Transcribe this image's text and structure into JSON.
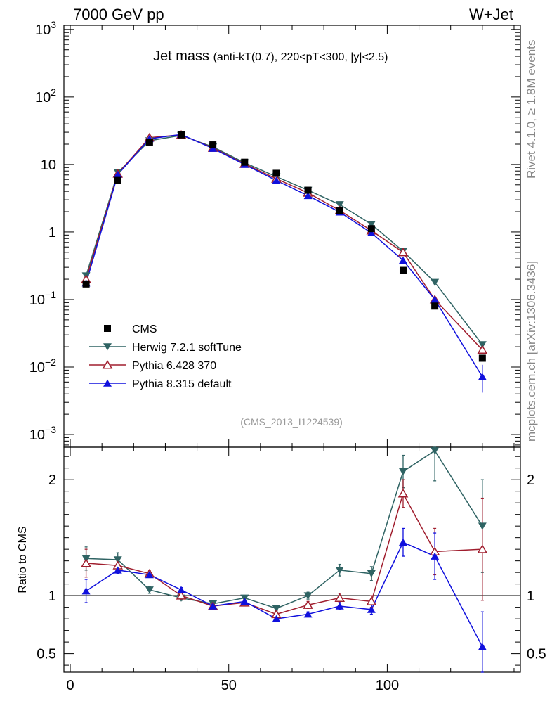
{
  "header": {
    "energy_label": "7000 GeV pp",
    "process_label": "W+Jet"
  },
  "side_labels": {
    "rivet": "Rivet 4.1.0, ≥ 1.8M events",
    "mcplots": "mcplots.cern.ch [arXiv:1306.3436]"
  },
  "chart_data": {
    "type": "line",
    "title": "Jet mass",
    "subtitle": "(anti-kT(0.7), 220<pT<300, |y|<2.5)",
    "analysis_id": "(CMS_2013_I1224539)",
    "xlabel": "",
    "ylabel": "",
    "xlim": [
      -2,
      142
    ],
    "ylim": [
      0.00065,
      1150
    ],
    "yscale": "log",
    "legend_position": "lower-left",
    "x": [
      5,
      15,
      25,
      35,
      45,
      55,
      65,
      75,
      85,
      95,
      105,
      115,
      130
    ],
    "xticks": [
      0,
      50,
      100
    ],
    "yticks": [
      {
        "base": "10",
        "exp": "−3"
      },
      {
        "base": "10",
        "exp": "−2"
      },
      {
        "base": "10",
        "exp": "−1"
      },
      {
        "base": "1",
        "exp": ""
      },
      {
        "base": "10",
        "exp": ""
      },
      {
        "base": "10",
        "exp": "2"
      },
      {
        "base": "10",
        "exp": "3"
      }
    ],
    "data": {
      "name": "CMS",
      "color": "#000000",
      "marker": "square",
      "values": [
        0.17,
        5.8,
        21.5,
        27.5,
        19.5,
        10.8,
        7.4,
        4.15,
        2.1,
        1.12,
        0.27,
        0.08,
        0.0135
      ]
    },
    "series": [
      {
        "name": "Herwig 7.2.1 softTune",
        "color": "#2f6363",
        "marker": "triangle-down",
        "values": [
          0.225,
          7.6,
          22.5,
          27.0,
          18.2,
          10.6,
          6.6,
          4.15,
          2.55,
          1.3,
          0.52,
          0.18,
          0.0215
        ],
        "ratio": [
          1.32,
          1.31,
          1.05,
          0.98,
          0.93,
          0.98,
          0.89,
          1.0,
          1.22,
          1.19,
          2.07,
          2.25,
          1.6
        ],
        "ratio_err": [
          0.1,
          0.06,
          0.03,
          0.02,
          0.02,
          0.02,
          0.02,
          0.03,
          0.05,
          0.06,
          0.14,
          0.26,
          0.4
        ]
      },
      {
        "name": "Pythia 6.428 370",
        "color": "#a01e2e",
        "marker": "triangle-up-open",
        "values": [
          0.2,
          7.3,
          25.0,
          27.5,
          17.6,
          10.2,
          6.15,
          3.8,
          2.08,
          1.05,
          0.5,
          0.1,
          0.018
        ],
        "ratio": [
          1.28,
          1.26,
          1.19,
          1.0,
          0.91,
          0.94,
          0.84,
          0.92,
          0.98,
          0.95,
          1.88,
          1.38,
          1.4
        ],
        "ratio_err": [
          0.12,
          0.04,
          0.03,
          0.02,
          0.02,
          0.02,
          0.02,
          0.03,
          0.04,
          0.05,
          0.12,
          0.2,
          0.44
        ]
      },
      {
        "name": "Pythia 8.315 default",
        "color": "#1010dd",
        "marker": "triangle-up",
        "values": [
          0.175,
          7.1,
          24.0,
          27.8,
          17.3,
          10.0,
          5.8,
          3.45,
          1.97,
          0.97,
          0.38,
          0.1,
          0.0072
        ],
        "ratio": [
          1.04,
          1.22,
          1.18,
          1.05,
          0.91,
          0.95,
          0.8,
          0.84,
          0.91,
          0.88,
          1.46,
          1.34,
          0.56
        ],
        "ratio_err": [
          0.1,
          0.03,
          0.02,
          0.02,
          0.02,
          0.02,
          0.02,
          0.02,
          0.03,
          0.04,
          0.12,
          0.2,
          0.3
        ]
      }
    ],
    "ratio_panel": {
      "ylabel": "Ratio to CMS",
      "ylim": [
        0.34,
        2.28
      ],
      "yticks": [
        "0.5",
        "1",
        "2"
      ],
      "reference_line": 1
    }
  }
}
